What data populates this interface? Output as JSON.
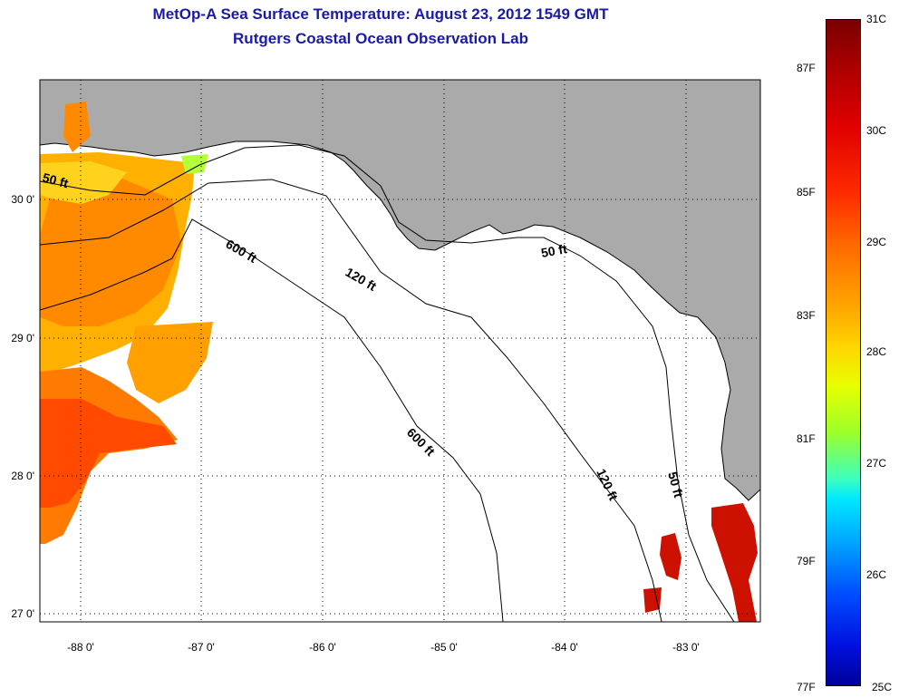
{
  "title": {
    "line1": "MetOp-A Sea Surface Temperature:  August 23, 2012 1549 GMT",
    "line2": "Rutgers Coastal Ocean Observation Lab"
  },
  "axes": {
    "x_ticks": [
      "-88 0'",
      "-87 0'",
      "-86 0'",
      "-85 0'",
      "-84 0'",
      "-83 0'"
    ],
    "y_ticks": [
      "30 0'",
      "29 0'",
      "28 0'",
      "27 0'"
    ]
  },
  "contours": {
    "shallow": "50 ft",
    "mid": "120 ft",
    "deep": "600 ft"
  },
  "colorbar": {
    "celsius": [
      "31C",
      "30C",
      "29C",
      "28C",
      "27C",
      "26C",
      "25C"
    ],
    "fahrenheit": [
      "87F",
      "85F",
      "83F",
      "81F",
      "79F",
      "77F"
    ]
  },
  "colors": {
    "land": "#aaaaaa",
    "title": "#1a1aa8"
  }
}
